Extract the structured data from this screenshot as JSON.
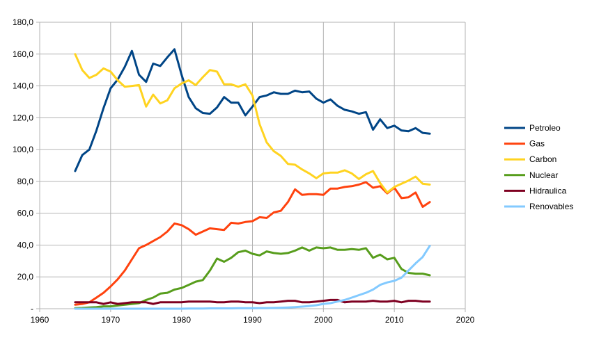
{
  "chart_data": {
    "type": "line",
    "title": "",
    "xlabel": "",
    "ylabel": "",
    "xlim": [
      1960,
      2020
    ],
    "ylim": [
      0,
      180
    ],
    "grid": true,
    "legend_position": "right",
    "x_ticks": [
      "1960",
      "1970",
      "1980",
      "1990",
      "2000",
      "2010",
      "2020"
    ],
    "y_ticks": [
      "-",
      "20,0",
      "40,0",
      "60,0",
      "80,0",
      "100,0",
      "120,0",
      "140,0",
      "160,0",
      "180,0"
    ],
    "x": [
      1965,
      1966,
      1967,
      1968,
      1969,
      1970,
      1971,
      1972,
      1973,
      1974,
      1975,
      1976,
      1977,
      1978,
      1979,
      1980,
      1981,
      1982,
      1983,
      1984,
      1985,
      1986,
      1987,
      1988,
      1989,
      1990,
      1991,
      1992,
      1993,
      1994,
      1995,
      1996,
      1997,
      1998,
      1999,
      2000,
      2001,
      2002,
      2003,
      2004,
      2005,
      2006,
      2007,
      2008,
      2009,
      2010,
      2011,
      2012,
      2013,
      2014,
      2015
    ],
    "series": [
      {
        "name": "Petroleo",
        "color": "#004586",
        "values": [
          86.5,
          96.5,
          100,
          112,
          126,
          138.5,
          144,
          152,
          162,
          147,
          142.5,
          154,
          152.5,
          158,
          163,
          147,
          133,
          126,
          123,
          122.5,
          126.5,
          133,
          129.5,
          129.5,
          121.5,
          127,
          133,
          134,
          136,
          135,
          135,
          137,
          136,
          136.5,
          132,
          129.5,
          131.5,
          127.5,
          125,
          124,
          122.5,
          123.5,
          112.5,
          119,
          113.5,
          115,
          112,
          111.5,
          113.5,
          110.5,
          110
        ]
      },
      {
        "name": "Gas",
        "color": "#ff420e",
        "values": [
          2.5,
          3,
          4,
          7,
          10,
          14,
          18.5,
          24,
          31,
          38,
          40,
          42.5,
          45,
          48.5,
          53.5,
          52.5,
          50,
          46.5,
          48.5,
          50.5,
          50,
          49.5,
          54,
          53.5,
          54.5,
          55,
          57.5,
          57,
          60.5,
          61.5,
          67,
          75,
          71.5,
          72,
          72,
          71.5,
          75.5,
          75.5,
          76.5,
          77,
          78,
          79.5,
          76,
          77,
          72.5,
          76,
          69.5,
          70,
          73,
          64,
          67
        ]
      },
      {
        "name": "Carbon",
        "color": "#ffd320",
        "values": [
          160,
          150,
          145,
          147,
          151,
          149,
          143.5,
          139.5,
          140,
          140.5,
          127,
          134.5,
          129,
          131,
          138.5,
          141.5,
          143.5,
          140.5,
          145.5,
          150,
          149,
          141,
          141,
          139.5,
          141,
          134,
          116,
          104.5,
          99,
          96,
          91,
          90.5,
          87.5,
          85,
          82,
          85,
          85.5,
          85.5,
          87,
          85,
          81.5,
          84.5,
          86.5,
          79,
          73,
          76.5,
          78.5,
          80.5,
          83,
          78.5,
          78
        ]
      },
      {
        "name": "Nuclear",
        "color": "#579d1c",
        "values": [
          0.3,
          0.5,
          0.8,
          1,
          1.5,
          1.5,
          2,
          2.5,
          3,
          3.5,
          5.5,
          7,
          9.5,
          10,
          12,
          13,
          15,
          17,
          18,
          24,
          31.5,
          29.5,
          32,
          35.5,
          36.5,
          34.5,
          33.5,
          36,
          35,
          34.5,
          35,
          36.5,
          38.5,
          36.5,
          38.5,
          38,
          38.5,
          37,
          37,
          37.5,
          37,
          38,
          32,
          34,
          31,
          32,
          25,
          22.5,
          22,
          22,
          21
        ]
      },
      {
        "name": "Hidraulica",
        "color": "#7e0021",
        "values": [
          4,
          4,
          4,
          4,
          3,
          4,
          3,
          3.5,
          4,
          4,
          4,
          3,
          4,
          4,
          4,
          4,
          4.5,
          4.5,
          4.5,
          4.5,
          4,
          4,
          4.5,
          4.5,
          4,
          4,
          3.5,
          4,
          4,
          4.5,
          5,
          5,
          4,
          4,
          4.5,
          5,
          5.5,
          5.5,
          4,
          4.5,
          4.5,
          4.5,
          5,
          4.5,
          4.5,
          5,
          4,
          5,
          5,
          4.5,
          4.5
        ]
      },
      {
        "name": "Renovables",
        "color": "#83caff",
        "values": [
          0,
          0,
          0,
          0,
          0,
          0,
          0,
          0,
          0,
          0,
          0,
          0,
          0,
          0,
          0,
          0,
          0.1,
          0.1,
          0.1,
          0.2,
          0.2,
          0.2,
          0.2,
          0.3,
          0.3,
          0.3,
          0.4,
          0.4,
          0.5,
          0.6,
          0.8,
          1,
          1.3,
          1.7,
          2.2,
          3,
          3.5,
          4.5,
          5.5,
          7,
          8.5,
          10,
          12,
          15,
          16.5,
          17.5,
          19.5,
          24,
          28.5,
          32.5,
          39.5
        ]
      }
    ]
  }
}
